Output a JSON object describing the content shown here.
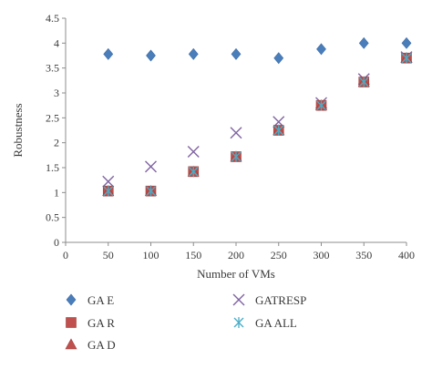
{
  "chart_data": {
    "type": "scatter",
    "xlabel": "Number of VMs",
    "ylabel": "Robustness",
    "xlim": [
      0,
      400
    ],
    "ylim": [
      0,
      4.5
    ],
    "xticks": [
      "0",
      "50",
      "100",
      "150",
      "200",
      "250",
      "300",
      "350",
      "400"
    ],
    "yticks": [
      "0",
      "0.5",
      "1",
      "1.5",
      "2",
      "2.5",
      "3",
      "3.5",
      "4",
      "4.5"
    ],
    "grid": false,
    "legend_position": "bottom",
    "x": [
      50,
      100,
      150,
      200,
      250,
      300,
      350,
      400
    ],
    "series": [
      {
        "name": "GA E",
        "marker": "diamond",
        "color": "#4a7ebb",
        "values": [
          3.78,
          3.75,
          3.78,
          3.78,
          3.7,
          3.88,
          4.0,
          4.0
        ]
      },
      {
        "name": "GA R",
        "marker": "square",
        "color": "#c0504d",
        "values": [
          1.03,
          1.03,
          1.42,
          1.72,
          2.25,
          2.75,
          3.22,
          3.7
        ]
      },
      {
        "name": "GA D",
        "marker": "triangle",
        "color": "#c0504d",
        "values": [
          1.03,
          1.03,
          1.42,
          1.72,
          2.25,
          2.75,
          3.22,
          3.7
        ]
      },
      {
        "name": "GATRESP",
        "marker": "x",
        "color": "#8064a2",
        "values": [
          1.22,
          1.52,
          1.82,
          2.2,
          2.42,
          2.8,
          3.28,
          3.72
        ]
      },
      {
        "name": "GA ALL",
        "marker": "star",
        "color": "#4bacc6",
        "values": [
          1.03,
          1.03,
          1.42,
          1.72,
          2.25,
          2.75,
          3.22,
          3.7
        ]
      }
    ]
  }
}
